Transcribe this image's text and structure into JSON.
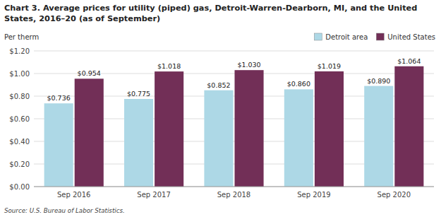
{
  "chart_data": {
    "type": "bar",
    "title": "Chart 3. Average prices for utility (piped) gas, Detroit-Warren-Dearborn, MI, and the United States, 2016–20  (as of September)",
    "ylabel": "Per therm",
    "source": "Source: U.S. Bureau of Labor Statistics.",
    "categories": [
      "Sep 2016",
      "Sep 2017",
      "Sep 2018",
      "Sep 2019",
      "Sep 2020"
    ],
    "series": [
      {
        "name": "Detroit area",
        "color": "#add8e6",
        "values": [
          0.736,
          0.775,
          0.852,
          0.86,
          0.89
        ],
        "value_labels": [
          "$0.736",
          "$0.775",
          "$0.852",
          "$0.860",
          "$0.890"
        ]
      },
      {
        "name": "United States",
        "color": "#722f57",
        "values": [
          0.954,
          1.018,
          1.03,
          1.019,
          1.064
        ],
        "value_labels": [
          "$0.954",
          "$1.018",
          "$1.030",
          "$1.019",
          "$1.064"
        ]
      }
    ],
    "ylim": [
      0.0,
      1.2
    ],
    "yticks": [
      {
        "value": 0.0,
        "label": "$0.00"
      },
      {
        "value": 0.2,
        "label": "$0.20"
      },
      {
        "value": 0.4,
        "label": "$0.40"
      },
      {
        "value": 0.6,
        "label": "$0.60"
      },
      {
        "value": 0.8,
        "label": "$0.80"
      },
      {
        "value": 1.0,
        "label": "$1.00"
      },
      {
        "value": 1.2,
        "label": "$1.20"
      }
    ],
    "grid": true,
    "legend": "upper right",
    "data_labels": true
  }
}
